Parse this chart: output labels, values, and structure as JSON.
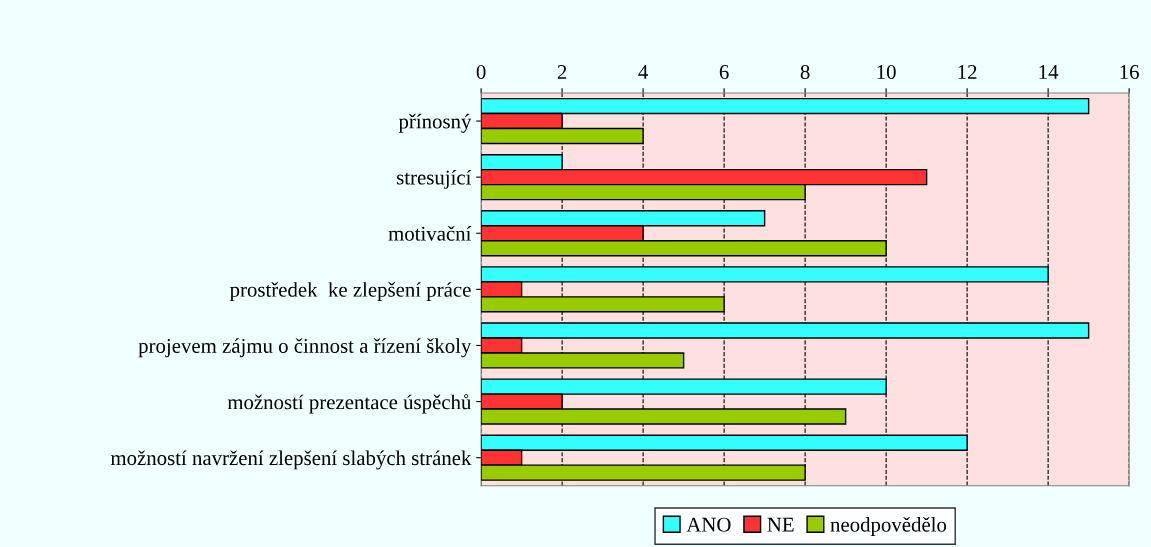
{
  "chart_data": {
    "type": "bar",
    "orientation": "horizontal",
    "categories": [
      "přínosný",
      "stresující",
      "motivační",
      "prostředek  ke zlepšení práce",
      "projevem zájmu o činnost a řízení školy",
      "možností prezentace úspěchů",
      "možností navržení zlepšení slabých stránek"
    ],
    "series": [
      {
        "name": "ANO",
        "color": "#33ffff",
        "values": [
          15,
          2,
          7,
          14,
          15,
          10,
          12
        ]
      },
      {
        "name": "NE",
        "color": "#ff3333",
        "values": [
          2,
          11,
          4,
          1,
          1,
          2,
          1
        ]
      },
      {
        "name": "neodpovědělo",
        "color": "#99cc00",
        "values": [
          4,
          8,
          10,
          6,
          5,
          9,
          8
        ]
      }
    ],
    "xlim": [
      0,
      16
    ],
    "xticks": [
      0,
      2,
      4,
      6,
      8,
      10,
      12,
      14,
      16
    ],
    "grid": "x",
    "legend": "bottom"
  }
}
